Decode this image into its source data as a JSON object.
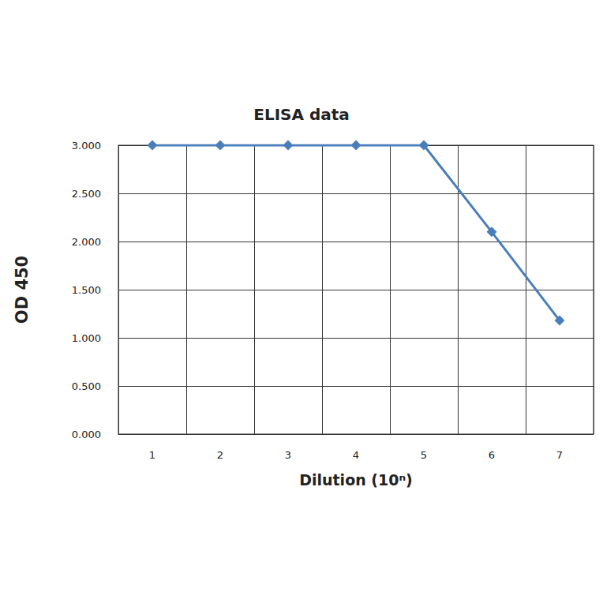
{
  "chart_data": {
    "type": "line",
    "title": "ELISA data",
    "x_label": "Dilution (10ⁿ)",
    "y_label": "OD 450",
    "categories": [
      "1",
      "2",
      "3",
      "4",
      "5",
      "6",
      "7"
    ],
    "values": [
      3,
      3,
      3,
      3,
      3,
      2.1,
      1.18
    ],
    "color": "#4a7ebb",
    "marker": "diamond",
    "ylim": [
      0,
      3
    ],
    "yticks": [
      {
        "value": 0,
        "label": "0.000"
      },
      {
        "value": 0.5,
        "label": "0.500"
      },
      {
        "value": 1,
        "label": "1.000"
      },
      {
        "value": 1.5,
        "label": "1.500"
      },
      {
        "value": 2,
        "label": "2.000"
      },
      {
        "value": 2.5,
        "label": "2.500"
      },
      {
        "value": 3,
        "label": "3.000"
      }
    ],
    "grid": true
  }
}
